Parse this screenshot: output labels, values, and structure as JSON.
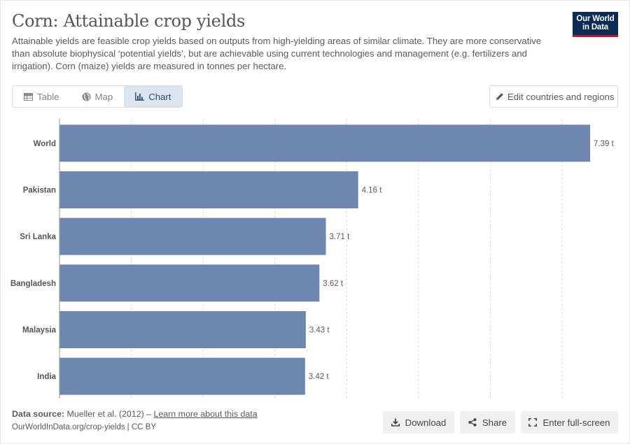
{
  "header": {
    "title": "Corn: Attainable crop yields",
    "subtitle": "Attainable yields are feasible crop yields based on outputs from high-yielding areas of similar climate. They are more conservative than absolute biophysical ‘potential yields’, but are achievable using current technologies and management (e.g. fertilizers and irrigation). Corn (maize) yields are measured in tonnes per hectare.",
    "logo_line1": "Our World",
    "logo_line2": "in Data"
  },
  "tabs": [
    {
      "label": "Table",
      "icon": "table-icon",
      "active": false
    },
    {
      "label": "Map",
      "icon": "globe-icon",
      "active": false
    },
    {
      "label": "Chart",
      "icon": "chart-icon",
      "active": true
    }
  ],
  "edit_button": {
    "label": "Edit countries and regions",
    "icon": "pencil-icon"
  },
  "chart_data": {
    "type": "bar",
    "orientation": "horizontal",
    "categories": [
      "World",
      "Pakistan",
      "Sri Lanka",
      "Bangladesh",
      "Malaysia",
      "India"
    ],
    "values": [
      7.39,
      4.16,
      3.71,
      3.62,
      3.43,
      3.42
    ],
    "value_labels": [
      "7.39 t",
      "4.16 t",
      "3.71 t",
      "3.62 t",
      "3.43 t",
      "3.42 t"
    ],
    "xlim": [
      0,
      7.39
    ],
    "grid": true,
    "bar_color": "#6d87b0"
  },
  "footer": {
    "source_label": "Data source:",
    "source_text": "Mueller et al. (2012) –",
    "source_link": "Learn more about this data",
    "url": "OurWorldInData.org/crop-yields | CC BY",
    "download_label": "Download",
    "share_label": "Share",
    "fullscreen_label": "Enter full-screen"
  }
}
